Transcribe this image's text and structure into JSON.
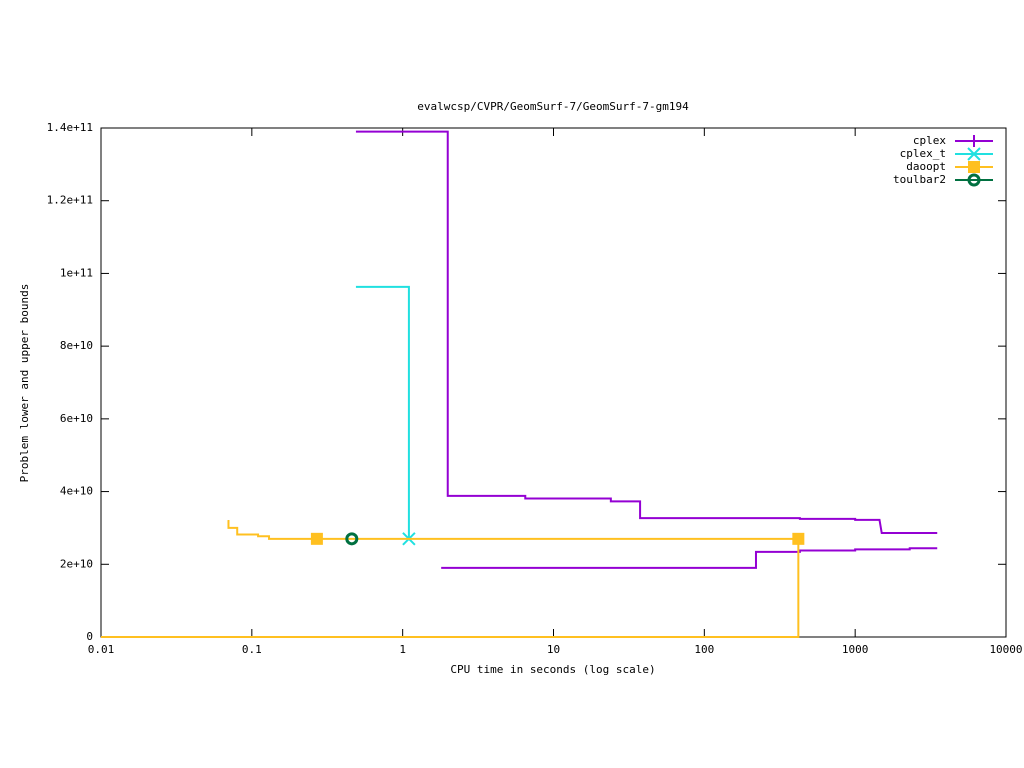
{
  "chart_data": {
    "type": "line",
    "title": "evalwcsp/CVPR/GeomSurf-7/GeomSurf-7-gm194",
    "x_label": "CPU time in seconds (log scale)",
    "y_label": "Problem lower and upper bounds",
    "log_x": true,
    "legend": "top-right",
    "xlim": [
      0.01,
      10000
    ],
    "xticks": [
      0.01,
      0.1,
      1,
      10,
      100,
      1000,
      10000
    ],
    "ylim": [
      0,
      140000000000
    ],
    "yticks": [
      0,
      {
        "value": 20000000000,
        "label": "2e+10"
      },
      {
        "value": 40000000000,
        "label": "4e+10"
      },
      {
        "value": 60000000000,
        "label": "6e+10"
      },
      {
        "value": 80000000000,
        "label": "8e+10"
      },
      {
        "value": 100000000000,
        "label": "1e+11"
      },
      {
        "value": 120000000000,
        "label": "1.2e+11"
      },
      {
        "value": 140000000000,
        "label": "1.4e+11"
      }
    ],
    "series": [
      {
        "name": "cplex",
        "color": "#9400d3",
        "marker": "plus",
        "x": [
          0.49,
          1.99,
          1.99,
          6.5,
          6.5,
          24,
          24,
          37.5,
          37.5,
          430,
          430,
          1000,
          1000,
          1450,
          1500,
          3500,
          null,
          1.8,
          220,
          220,
          430,
          430,
          1000,
          1000,
          2300,
          2300,
          3500
        ],
        "values": [
          139000000000,
          139000000000,
          38800000000,
          38800000000,
          38100000000,
          38100000000,
          37300000000,
          37300000000,
          32700000000,
          32700000000,
          32500000000,
          32500000000,
          32200000000,
          32200000000,
          28600000000,
          28600000000,
          null,
          19000000000,
          19000000000,
          23400000000,
          23400000000,
          23800000000,
          23800000000,
          24100000000,
          24100000000,
          24400000000,
          24400000000
        ],
        "marker_x": [],
        "marker_values": []
      },
      {
        "name": "cplex_t",
        "color": "#20e0e0",
        "marker": "cross",
        "x": [
          0.49,
          1.1,
          1.1
        ],
        "values": [
          96300000000,
          96300000000,
          27000000000
        ],
        "marker_x": [
          1.1
        ],
        "marker_values": [
          27000000000
        ]
      },
      {
        "name": "daoopt",
        "color": "#ffc020",
        "marker": "square",
        "x": [
          0.069,
          0.07,
          0.07,
          0.08,
          0.08,
          0.11,
          0.11,
          0.13,
          0.13,
          420,
          420,
          0.01
        ],
        "values": [
          31900000000,
          31900000000,
          30000000000,
          30000000000,
          28200000000,
          28200000000,
          27700000000,
          27700000000,
          27000000000,
          27000000000,
          0,
          0
        ],
        "marker_x": [
          0.27,
          420
        ],
        "marker_values": [
          27000000000,
          27000000000
        ]
      },
      {
        "name": "toulbar2",
        "color": "#007040",
        "marker": "circle",
        "x": [
          0.46
        ],
        "values": [
          27000000000
        ],
        "marker_x": [
          0.46
        ],
        "marker_values": [
          27000000000
        ]
      }
    ]
  }
}
